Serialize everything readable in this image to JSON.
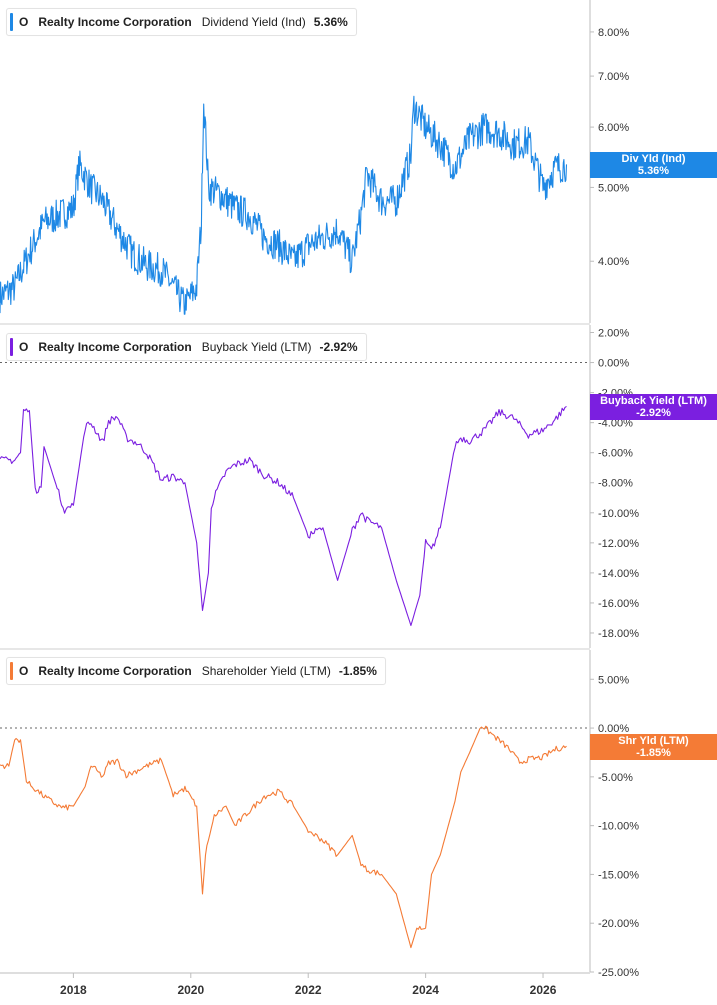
{
  "chart_data": [
    {
      "type": "line",
      "ticker": "O",
      "company": "Realty Income Corporation",
      "metric": "Dividend Yield (Ind)",
      "current_value": "5.36%",
      "tag_label": "Div Yld (Ind)",
      "tag_value": "5.36%",
      "color": "#1e88e5",
      "scale": "log",
      "ylim": [
        3.4,
        8.6
      ],
      "yticks": [
        "8.00%",
        "7.00%",
        "6.00%",
        "5.00%",
        "4.00%"
      ],
      "ytick_values": [
        8,
        7,
        6,
        5,
        4
      ],
      "x": [
        2016.75,
        2017.0,
        2017.25,
        2017.5,
        2017.75,
        2018.0,
        2018.1,
        2018.3,
        2018.5,
        2018.75,
        2019.0,
        2019.25,
        2019.5,
        2019.75,
        2019.9,
        2020.1,
        2020.18,
        2020.22,
        2020.3,
        2020.5,
        2020.75,
        2021.0,
        2021.25,
        2021.5,
        2021.75,
        2022.0,
        2022.25,
        2022.5,
        2022.75,
        2022.9,
        2023.0,
        2023.25,
        2023.5,
        2023.75,
        2023.8,
        2024.0,
        2024.25,
        2024.5,
        2024.75,
        2025.0,
        2025.25,
        2025.5,
        2025.75,
        2026.0,
        2026.2,
        2026.4
      ],
      "values": [
        3.6,
        3.7,
        4.1,
        4.5,
        4.6,
        4.7,
        5.35,
        5.0,
        4.8,
        4.4,
        4.1,
        3.95,
        3.9,
        3.65,
        3.5,
        3.7,
        4.5,
        6.5,
        5.0,
        4.9,
        4.7,
        4.6,
        4.3,
        4.2,
        4.0,
        4.2,
        4.3,
        4.4,
        4.0,
        4.6,
        5.2,
        4.8,
        4.8,
        5.5,
        6.4,
        6.0,
        5.7,
        5.3,
        5.8,
        6.0,
        5.9,
        5.7,
        5.75,
        5.0,
        5.3,
        5.36
      ]
    },
    {
      "type": "line",
      "ticker": "O",
      "company": "Realty Income Corporation",
      "metric": "Buyback Yield (LTM)",
      "current_value": "-2.92%",
      "tag_label": "Buyback Yield (LTM)",
      "tag_value": "-2.92%",
      "color": "#7b1fe0",
      "scale": "linear",
      "ylim": [
        -19,
        2.5
      ],
      "yticks": [
        "2.00%",
        "0.00%",
        "-2.00%",
        "-4.00%",
        "-6.00%",
        "-8.00%",
        "-10.00%",
        "-12.00%",
        "-14.00%",
        "-16.00%",
        "-18.00%"
      ],
      "ytick_values": [
        2,
        0,
        -2,
        -4,
        -6,
        -8,
        -10,
        -12,
        -14,
        -16,
        -18
      ],
      "x": [
        2016.75,
        2016.9,
        2017.0,
        2017.1,
        2017.15,
        2017.25,
        2017.35,
        2017.45,
        2017.5,
        2017.75,
        2017.85,
        2018.0,
        2018.2,
        2018.3,
        2018.5,
        2018.6,
        2018.75,
        2018.9,
        2019.0,
        2019.1,
        2019.25,
        2019.5,
        2019.7,
        2019.9,
        2020.1,
        2020.2,
        2020.3,
        2020.35,
        2020.45,
        2020.6,
        2020.75,
        2021.0,
        2021.25,
        2021.5,
        2021.75,
        2022.0,
        2022.25,
        2022.5,
        2022.75,
        2022.9,
        2023.0,
        2023.25,
        2023.5,
        2023.75,
        2023.9,
        2024.0,
        2024.1,
        2024.25,
        2024.5,
        2024.6,
        2024.75,
        2025.0,
        2025.25,
        2025.5,
        2025.75,
        2026.0,
        2026.2,
        2026.4
      ],
      "values": [
        -6.5,
        -6.5,
        -6.5,
        -6.0,
        -3.2,
        -3.2,
        -8.5,
        -8.3,
        -5.6,
        -8.7,
        -9.8,
        -9.5,
        -4.3,
        -4.0,
        -5.3,
        -3.9,
        -3.6,
        -5.0,
        -5.2,
        -5.4,
        -6.0,
        -7.8,
        -7.6,
        -8.0,
        -12.0,
        -16.5,
        -14.0,
        -9.5,
        -8.5,
        -7.3,
        -6.8,
        -6.5,
        -7.5,
        -8.0,
        -9.0,
        -11.5,
        -11.0,
        -14.5,
        -11.2,
        -10.0,
        -10.5,
        -11.0,
        -14.5,
        -17.5,
        -15.5,
        -12.0,
        -12.5,
        -11.0,
        -5.5,
        -5.0,
        -5.2,
        -4.5,
        -3.3,
        -3.7,
        -4.8,
        -4.5,
        -3.8,
        -2.92
      ]
    },
    {
      "type": "line",
      "ticker": "O",
      "company": "Realty Income Corporation",
      "metric": "Shareholder Yield (LTM)",
      "current_value": "-1.85%",
      "tag_label": "Shr Yld (LTM)",
      "tag_value": "-1.85%",
      "color": "#f47b36",
      "scale": "linear",
      "ylim": [
        -25,
        8
      ],
      "yticks": [
        "5.00%",
        "0.00%",
        "-5.00%",
        "-10.00%",
        "-15.00%",
        "-20.00%",
        "-25.00%"
      ],
      "ytick_values": [
        5,
        0,
        -5,
        -10,
        -15,
        -20,
        -25
      ],
      "x": [
        2016.75,
        2016.9,
        2017.0,
        2017.1,
        2017.2,
        2017.3,
        2017.5,
        2017.75,
        2017.85,
        2018.0,
        2018.2,
        2018.3,
        2018.5,
        2018.6,
        2018.75,
        2018.9,
        2019.0,
        2019.2,
        2019.5,
        2019.7,
        2019.9,
        2020.1,
        2020.2,
        2020.25,
        2020.3,
        2020.4,
        2020.6,
        2020.75,
        2021.0,
        2021.25,
        2021.5,
        2021.75,
        2022.0,
        2022.25,
        2022.5,
        2022.75,
        2022.9,
        2023.0,
        2023.25,
        2023.5,
        2023.75,
        2023.85,
        2024.0,
        2024.1,
        2024.25,
        2024.5,
        2024.6,
        2024.75,
        2024.95,
        2025.2,
        2025.4,
        2025.6,
        2025.75,
        2026.0,
        2026.2,
        2026.4
      ],
      "values": [
        -3.8,
        -3.9,
        -1.2,
        -1.2,
        -5.5,
        -6.0,
        -7.0,
        -8.0,
        -8.2,
        -8.0,
        -6.0,
        -3.8,
        -5.0,
        -3.6,
        -3.4,
        -4.8,
        -4.6,
        -4.0,
        -3.3,
        -6.8,
        -6.2,
        -8.0,
        -17.0,
        -13.0,
        -11.5,
        -9.0,
        -8.0,
        -10.0,
        -8.5,
        -7.0,
        -6.5,
        -8.0,
        -10.5,
        -11.5,
        -13.0,
        -11.0,
        -14.0,
        -14.5,
        -15.0,
        -17.0,
        -22.5,
        -20.5,
        -20.5,
        -15.0,
        -13.0,
        -7.5,
        -4.5,
        -2.5,
        0.3,
        -1.0,
        -2.0,
        -3.5,
        -3.2,
        -3.0,
        -2.2,
        -1.85
      ]
    }
  ],
  "x_axis": {
    "xlim": [
      2016.75,
      2026.8
    ],
    "ticks": [
      "2018",
      "2020",
      "2022",
      "2024",
      "2026"
    ],
    "tick_values": [
      2018,
      2020,
      2022,
      2024,
      2026
    ]
  }
}
